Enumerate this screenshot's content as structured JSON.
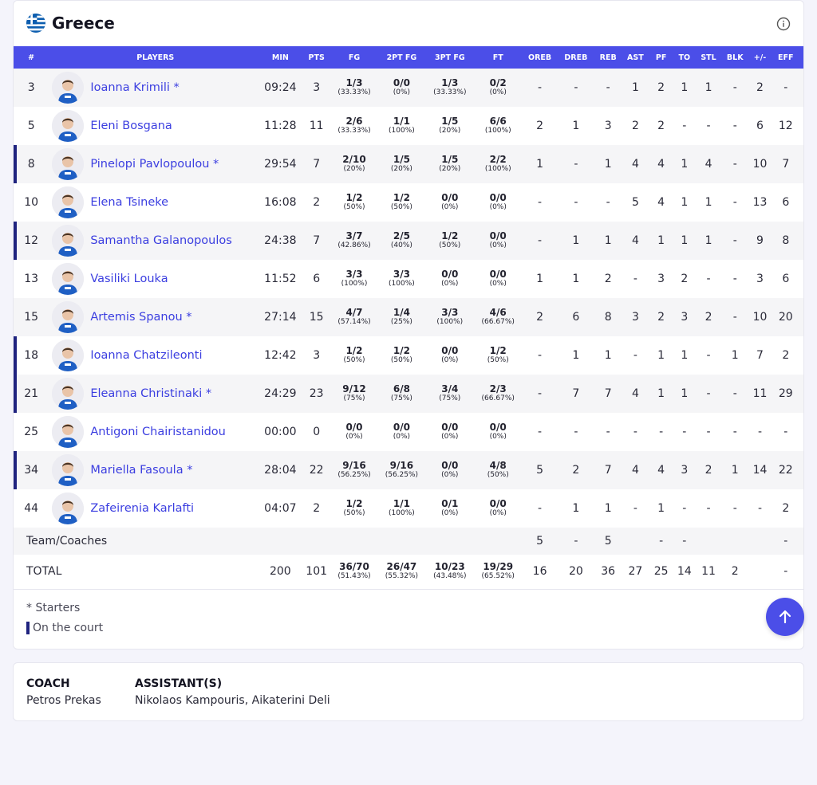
{
  "team": {
    "name": "Greece",
    "flag_icon": "greece-flag-icon",
    "info_icon": "info-icon"
  },
  "columns": [
    "#",
    "PLAYERS",
    "MIN",
    "PTS",
    "FG",
    "2PT FG",
    "3PT FG",
    "FT",
    "OREB",
    "DREB",
    "REB",
    "AST",
    "PF",
    "TO",
    "STL",
    "BLK",
    "+/-",
    "EFF"
  ],
  "players": [
    {
      "num": "3",
      "name": "Ioanna Krimili *",
      "on_court": false,
      "min": "09:24",
      "pts": "3",
      "fg": {
        "m": "1/3",
        "p": "(33.33%)"
      },
      "fg2": {
        "m": "0/0",
        "p": "(0%)"
      },
      "fg3": {
        "m": "1/3",
        "p": "(33.33%)"
      },
      "ft": {
        "m": "0/2",
        "p": "(0%)"
      },
      "oreb": "-",
      "dreb": "-",
      "reb": "-",
      "ast": "1",
      "pf": "2",
      "to": "1",
      "stl": "1",
      "blk": "-",
      "pm": "2",
      "eff": "-"
    },
    {
      "num": "5",
      "name": "Eleni Bosgana",
      "on_court": false,
      "min": "11:28",
      "pts": "11",
      "fg": {
        "m": "2/6",
        "p": "(33.33%)"
      },
      "fg2": {
        "m": "1/1",
        "p": "(100%)"
      },
      "fg3": {
        "m": "1/5",
        "p": "(20%)"
      },
      "ft": {
        "m": "6/6",
        "p": "(100%)"
      },
      "oreb": "2",
      "dreb": "1",
      "reb": "3",
      "ast": "2",
      "pf": "2",
      "to": "-",
      "stl": "-",
      "blk": "-",
      "pm": "6",
      "eff": "12"
    },
    {
      "num": "8",
      "name": "Pinelopi Pavlopoulou *",
      "on_court": true,
      "min": "29:54",
      "pts": "7",
      "fg": {
        "m": "2/10",
        "p": "(20%)"
      },
      "fg2": {
        "m": "1/5",
        "p": "(20%)"
      },
      "fg3": {
        "m": "1/5",
        "p": "(20%)"
      },
      "ft": {
        "m": "2/2",
        "p": "(100%)"
      },
      "oreb": "1",
      "dreb": "-",
      "reb": "1",
      "ast": "4",
      "pf": "4",
      "to": "1",
      "stl": "4",
      "blk": "-",
      "pm": "10",
      "eff": "7"
    },
    {
      "num": "10",
      "name": "Elena Tsineke",
      "on_court": false,
      "min": "16:08",
      "pts": "2",
      "fg": {
        "m": "1/2",
        "p": "(50%)"
      },
      "fg2": {
        "m": "1/2",
        "p": "(50%)"
      },
      "fg3": {
        "m": "0/0",
        "p": "(0%)"
      },
      "ft": {
        "m": "0/0",
        "p": "(0%)"
      },
      "oreb": "-",
      "dreb": "-",
      "reb": "-",
      "ast": "5",
      "pf": "4",
      "to": "1",
      "stl": "1",
      "blk": "-",
      "pm": "13",
      "eff": "6"
    },
    {
      "num": "12",
      "name": "Samantha Galanopoulos",
      "on_court": true,
      "min": "24:38",
      "pts": "7",
      "fg": {
        "m": "3/7",
        "p": "(42.86%)"
      },
      "fg2": {
        "m": "2/5",
        "p": "(40%)"
      },
      "fg3": {
        "m": "1/2",
        "p": "(50%)"
      },
      "ft": {
        "m": "0/0",
        "p": "(0%)"
      },
      "oreb": "-",
      "dreb": "1",
      "reb": "1",
      "ast": "4",
      "pf": "1",
      "to": "1",
      "stl": "1",
      "blk": "-",
      "pm": "9",
      "eff": "8"
    },
    {
      "num": "13",
      "name": "Vasiliki Louka",
      "on_court": false,
      "min": "11:52",
      "pts": "6",
      "fg": {
        "m": "3/3",
        "p": "(100%)"
      },
      "fg2": {
        "m": "3/3",
        "p": "(100%)"
      },
      "fg3": {
        "m": "0/0",
        "p": "(0%)"
      },
      "ft": {
        "m": "0/0",
        "p": "(0%)"
      },
      "oreb": "1",
      "dreb": "1",
      "reb": "2",
      "ast": "-",
      "pf": "3",
      "to": "2",
      "stl": "-",
      "blk": "-",
      "pm": "3",
      "eff": "6"
    },
    {
      "num": "15",
      "name": "Artemis Spanou *",
      "on_court": false,
      "min": "27:14",
      "pts": "15",
      "fg": {
        "m": "4/7",
        "p": "(57.14%)"
      },
      "fg2": {
        "m": "1/4",
        "p": "(25%)"
      },
      "fg3": {
        "m": "3/3",
        "p": "(100%)"
      },
      "ft": {
        "m": "4/6",
        "p": "(66.67%)"
      },
      "oreb": "2",
      "dreb": "6",
      "reb": "8",
      "ast": "3",
      "pf": "2",
      "to": "3",
      "stl": "2",
      "blk": "-",
      "pm": "10",
      "eff": "20"
    },
    {
      "num": "18",
      "name": "Ioanna Chatzileonti",
      "on_court": true,
      "min": "12:42",
      "pts": "3",
      "fg": {
        "m": "1/2",
        "p": "(50%)"
      },
      "fg2": {
        "m": "1/2",
        "p": "(50%)"
      },
      "fg3": {
        "m": "0/0",
        "p": "(0%)"
      },
      "ft": {
        "m": "1/2",
        "p": "(50%)"
      },
      "oreb": "-",
      "dreb": "1",
      "reb": "1",
      "ast": "-",
      "pf": "1",
      "to": "1",
      "stl": "-",
      "blk": "1",
      "pm": "7",
      "eff": "2"
    },
    {
      "num": "21",
      "name": "Eleanna Christinaki *",
      "on_court": true,
      "min": "24:29",
      "pts": "23",
      "fg": {
        "m": "9/12",
        "p": "(75%)"
      },
      "fg2": {
        "m": "6/8",
        "p": "(75%)"
      },
      "fg3": {
        "m": "3/4",
        "p": "(75%)"
      },
      "ft": {
        "m": "2/3",
        "p": "(66.67%)"
      },
      "oreb": "-",
      "dreb": "7",
      "reb": "7",
      "ast": "4",
      "pf": "1",
      "to": "1",
      "stl": "-",
      "blk": "-",
      "pm": "11",
      "eff": "29"
    },
    {
      "num": "25",
      "name": "Antigoni Chairistanidou",
      "on_court": false,
      "min": "00:00",
      "pts": "0",
      "fg": {
        "m": "0/0",
        "p": "(0%)"
      },
      "fg2": {
        "m": "0/0",
        "p": "(0%)"
      },
      "fg3": {
        "m": "0/0",
        "p": "(0%)"
      },
      "ft": {
        "m": "0/0",
        "p": "(0%)"
      },
      "oreb": "-",
      "dreb": "-",
      "reb": "-",
      "ast": "-",
      "pf": "-",
      "to": "-",
      "stl": "-",
      "blk": "-",
      "pm": "-",
      "eff": "-"
    },
    {
      "num": "34",
      "name": "Mariella Fasoula *",
      "on_court": true,
      "min": "28:04",
      "pts": "22",
      "fg": {
        "m": "9/16",
        "p": "(56.25%)"
      },
      "fg2": {
        "m": "9/16",
        "p": "(56.25%)"
      },
      "fg3": {
        "m": "0/0",
        "p": "(0%)"
      },
      "ft": {
        "m": "4/8",
        "p": "(50%)"
      },
      "oreb": "5",
      "dreb": "2",
      "reb": "7",
      "ast": "4",
      "pf": "4",
      "to": "3",
      "stl": "2",
      "blk": "1",
      "pm": "14",
      "eff": "22"
    },
    {
      "num": "44",
      "name": "Zafeirenia Karlafti",
      "on_court": false,
      "min": "04:07",
      "pts": "2",
      "fg": {
        "m": "1/2",
        "p": "(50%)"
      },
      "fg2": {
        "m": "1/1",
        "p": "(100%)"
      },
      "fg3": {
        "m": "0/1",
        "p": "(0%)"
      },
      "ft": {
        "m": "0/0",
        "p": "(0%)"
      },
      "oreb": "-",
      "dreb": "1",
      "reb": "1",
      "ast": "-",
      "pf": "1",
      "to": "-",
      "stl": "-",
      "blk": "-",
      "pm": "-",
      "eff": "2"
    }
  ],
  "team_row": {
    "label": "Team/Coaches",
    "oreb": "5",
    "dreb": "-",
    "reb": "5",
    "ast": "",
    "pf": "-",
    "to": "-",
    "stl": "",
    "blk": "",
    "pm": "",
    "eff": "-"
  },
  "total_row": {
    "label": "TOTAL",
    "min": "200",
    "pts": "101",
    "fg": {
      "m": "36/70",
      "p": "(51.43%)"
    },
    "fg2": {
      "m": "26/47",
      "p": "(55.32%)"
    },
    "fg3": {
      "m": "10/23",
      "p": "(43.48%)"
    },
    "ft": {
      "m": "19/29",
      "p": "(65.52%)"
    },
    "oreb": "16",
    "dreb": "20",
    "reb": "36",
    "ast": "27",
    "pf": "25",
    "to": "14",
    "stl": "11",
    "blk": "2",
    "pm": "",
    "eff": "-"
  },
  "legend": {
    "starters": "* Starters",
    "on_court": "On the court"
  },
  "coach": {
    "coach_title": "COACH",
    "coach_name": "Petros Prekas",
    "assistants_title": "ASSISTANT(S)",
    "assistants": "Nikolaos Kampouris, Aikaterini Deli"
  },
  "colors": {
    "accent": "#4b4ee8",
    "on_court_bar": "#1f237f",
    "player_link": "#3b3ee0"
  }
}
